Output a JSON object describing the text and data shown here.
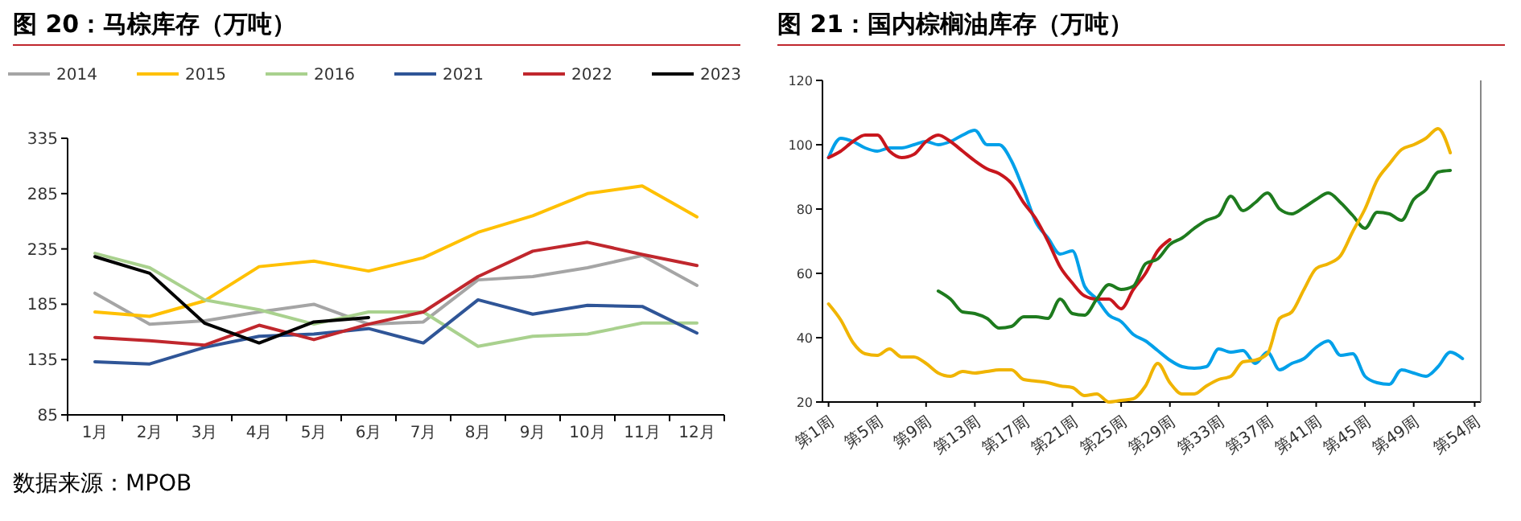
{
  "chart_data": [
    {
      "type": "line",
      "title": "图 20：马棕库存（万吨）",
      "categories": [
        "1月",
        "2月",
        "3月",
        "4月",
        "5月",
        "6月",
        "7月",
        "8月",
        "9月",
        "10月",
        "11月",
        "12月"
      ],
      "ylim": [
        85,
        335
      ],
      "yticks": [
        85,
        135,
        185,
        235,
        285,
        335
      ],
      "legend": "top",
      "annotations": [
        "数据来源：MPOB"
      ],
      "series": [
        {
          "name": "2014",
          "color": "#a5a5a5",
          "values": [
            195,
            167,
            170,
            178,
            185,
            167,
            169,
            207,
            210,
            218,
            229,
            202
          ]
        },
        {
          "name": "2015",
          "color": "#ffc000",
          "values": [
            178,
            174,
            188,
            219,
            224,
            215,
            227,
            250,
            265,
            285,
            292,
            264
          ]
        },
        {
          "name": "2016",
          "color": "#a9d18e",
          "values": [
            231,
            218,
            189,
            180,
            167,
            178,
            178,
            147,
            156,
            158,
            168,
            168
          ]
        },
        {
          "name": "2021",
          "color": "#2f5597",
          "values": [
            133,
            131,
            146,
            156,
            158,
            163,
            150,
            189,
            176,
            184,
            183,
            159
          ]
        },
        {
          "name": "2022",
          "color": "#c0272d",
          "values": [
            155,
            152,
            148,
            166,
            153,
            167,
            178,
            210,
            233,
            241,
            230,
            220
          ]
        },
        {
          "name": "2023",
          "color": "#000000",
          "values": [
            228,
            213,
            168,
            150,
            169,
            173,
            null,
            null,
            null,
            null,
            null,
            null
          ]
        }
      ]
    },
    {
      "type": "line",
      "title": "图 21：国内棕榈油库存（万吨）",
      "categories": [
        "第1周",
        null,
        null,
        null,
        "第5周",
        null,
        null,
        null,
        "第9周",
        null,
        null,
        null,
        "第13周",
        null,
        null,
        null,
        "第17周",
        null,
        null,
        null,
        "第21周",
        null,
        null,
        null,
        "第25周",
        null,
        null,
        null,
        "第29周",
        null,
        null,
        null,
        "第33周",
        null,
        null,
        null,
        "第37周",
        null,
        null,
        null,
        "第41周",
        null,
        null,
        null,
        "第45周",
        null,
        null,
        null,
        "第49周",
        null,
        null,
        null,
        null,
        "第54周"
      ],
      "ylim": [
        20,
        120
      ],
      "yticks": [
        20,
        40,
        60,
        80,
        100,
        120
      ],
      "series": [
        {
          "color": "#00a0e9",
          "values": [
            96,
            102,
            101,
            99,
            98,
            99,
            99,
            100,
            101,
            100,
            101,
            103,
            104.5,
            100,
            100,
            95,
            86,
            76,
            71,
            66,
            67,
            56,
            52,
            47,
            45,
            41,
            39,
            36,
            33,
            31,
            30.5,
            31,
            36.5,
            35.5,
            36,
            32,
            35.5,
            30,
            32,
            33.5,
            37,
            39,
            34.5,
            35,
            28,
            26,
            25.5,
            30,
            29,
            28,
            31,
            35.5,
            33.5,
            null
          ]
        },
        {
          "color": "#c8161d",
          "values": [
            96,
            98,
            101,
            103,
            103,
            98,
            96,
            97,
            101,
            103,
            101,
            98,
            95,
            92.5,
            91,
            88,
            82,
            77,
            70,
            62,
            57,
            53,
            52,
            52,
            49,
            55,
            60,
            67,
            70.5,
            null,
            null,
            null,
            null,
            null,
            null,
            null,
            null,
            null,
            null,
            null,
            null,
            null,
            null,
            null,
            null,
            null,
            null,
            null,
            null,
            null,
            null,
            null,
            null,
            null
          ]
        },
        {
          "color": "#1e7b1e",
          "values": [
            null,
            null,
            null,
            null,
            null,
            null,
            null,
            null,
            null,
            54.5,
            52,
            48,
            47.5,
            46,
            43,
            43.5,
            46.5,
            46.5,
            46,
            52,
            47.5,
            47,
            52,
            56.5,
            55,
            56,
            63,
            64.5,
            69,
            71,
            74,
            76.5,
            78,
            84,
            79.5,
            82,
            85,
            80,
            78.5,
            80.5,
            83,
            85,
            82,
            78,
            74,
            79,
            78.5,
            76.5,
            83,
            86,
            91.5,
            92,
            null,
            null
          ]
        },
        {
          "color": "#f0b400",
          "values": [
            50.5,
            45.5,
            38.5,
            35,
            34.5,
            36.5,
            34,
            34,
            32,
            29,
            28,
            29.5,
            29,
            29.5,
            30,
            30,
            27,
            26.5,
            26,
            25,
            24.5,
            22,
            22.5,
            20,
            20.5,
            21,
            25,
            32,
            26,
            22.5,
            22.5,
            25,
            27,
            28,
            32.5,
            33,
            35,
            46,
            48,
            55,
            61.5,
            63,
            65.5,
            73,
            80,
            89,
            94,
            98.5,
            100,
            102,
            105,
            97.5,
            null,
            null
          ]
        }
      ]
    }
  ]
}
